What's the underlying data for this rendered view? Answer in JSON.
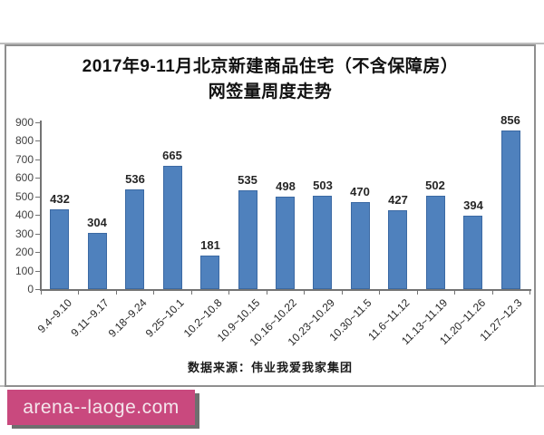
{
  "chart": {
    "title_line1": "2017年9-11月北京新建商品住宅（不含保障房）",
    "title_line2": "网签量周度走势",
    "source_note": "数据来源：伟业我爱我家集团"
  },
  "watermark": {
    "text": "arena--laoge.com",
    "bg_color": "#c9497e",
    "shadow_color": "#6f6f6f",
    "text_color": "#f4e6ec"
  },
  "chart_data": {
    "type": "bar",
    "title": "2017年9-11月北京新建商品住宅（不含保障房）网签量周度走势",
    "categories": [
      "9.4~9.10",
      "9.11~9.17",
      "9.18~9.24",
      "9.25~10.1",
      "10.2~10.8",
      "10.9~10.15",
      "10.16~10.22",
      "10.23~10.29",
      "10.30~11.5",
      "11.6~11.12",
      "11.13~11.19",
      "11.20~11.26",
      "11.27~12.3"
    ],
    "values": [
      432,
      304,
      536,
      665,
      181,
      535,
      498,
      503,
      470,
      427,
      502,
      394,
      856
    ],
    "xlabel": "",
    "ylabel": "",
    "ylim": [
      0,
      900
    ],
    "ytick_interval": 100,
    "grid": false,
    "legend": false,
    "bar_color": "#4f81bd",
    "value_labels": true,
    "source_note": "数据来源：伟业我爱我家集团"
  }
}
